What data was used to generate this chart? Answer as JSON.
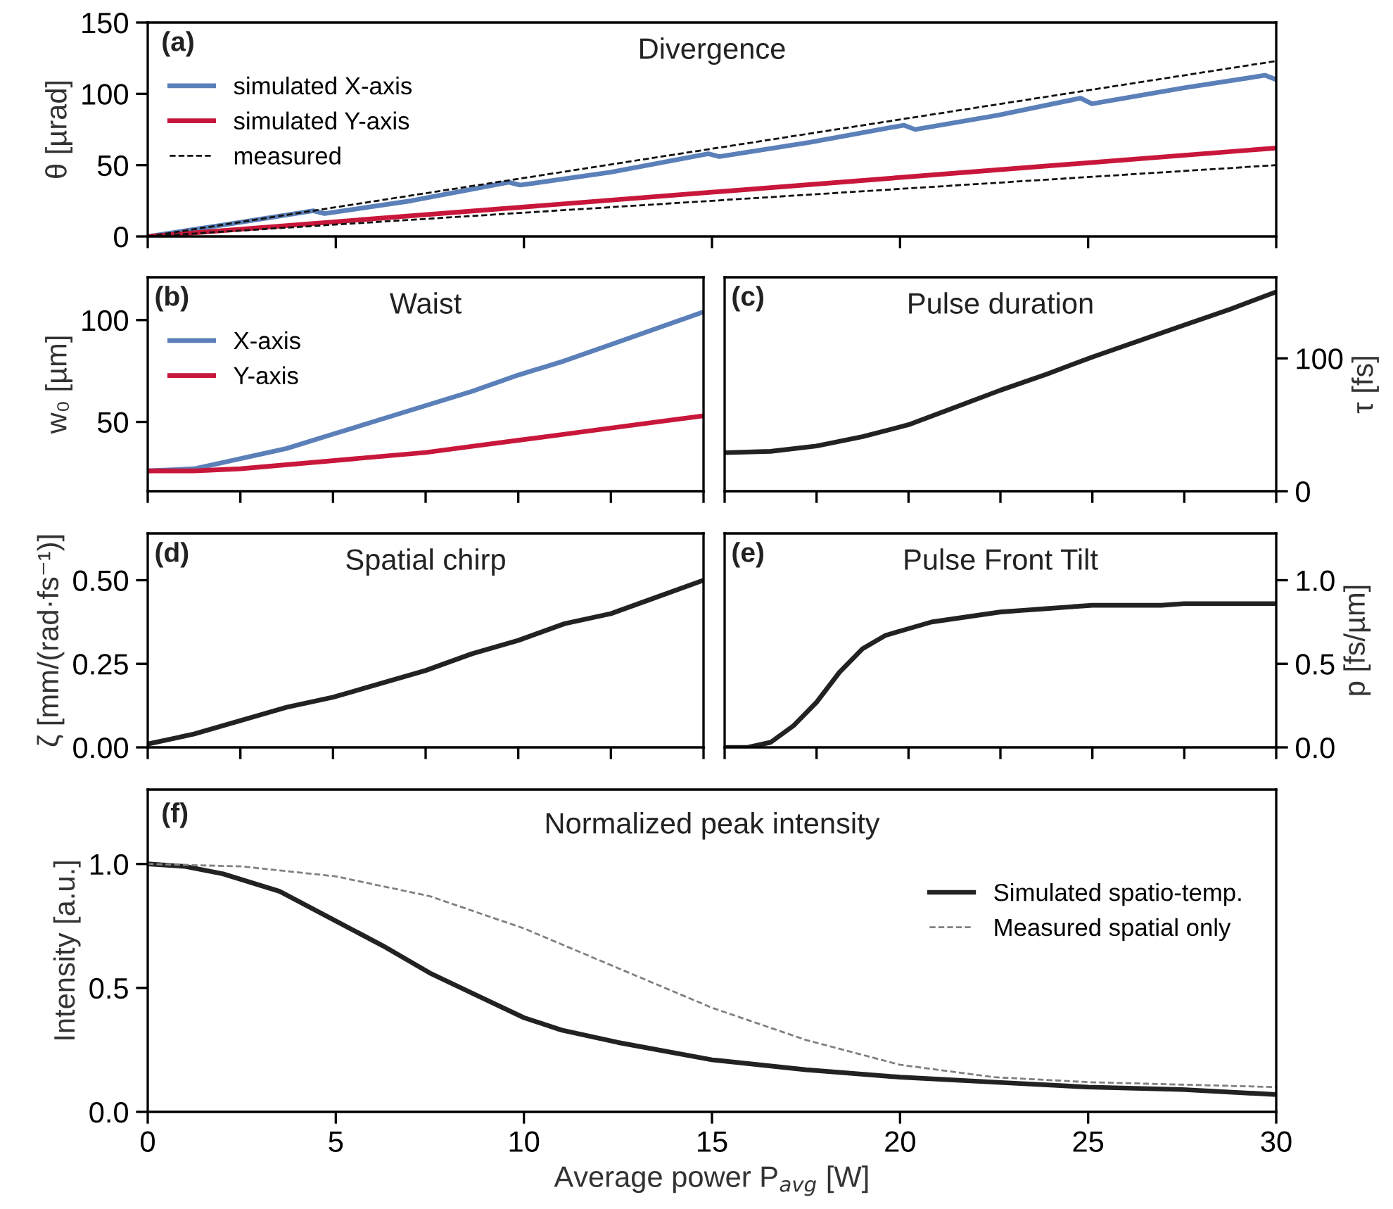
{
  "chart_data": [
    {
      "type": "line",
      "title": "Divergence",
      "ylabel": "θ [µrad]",
      "annotations": [
        "(a)"
      ],
      "legend": "top left",
      "tick_labels": "y",
      "xlim": [
        0,
        30
      ],
      "xticks": [
        {
          "value": 0,
          "label": null
        },
        {
          "value": 5,
          "label": null
        },
        {
          "value": 10,
          "label": null
        },
        {
          "value": 15,
          "label": null
        },
        {
          "value": 20,
          "label": null
        },
        {
          "value": 25,
          "label": null
        },
        {
          "value": 30,
          "label": null
        }
      ],
      "ylim": [
        0,
        150
      ],
      "yticks": [
        0,
        50,
        100,
        150
      ],
      "series": [
        {
          "name": "simulated X-axis",
          "color": "#5b80b9",
          "x": [
            0,
            2,
            4.4,
            4.7,
            7,
            9.6,
            9.9,
            12.3,
            14.9,
            15.2,
            17.6,
            20.1,
            20.4,
            22.6,
            24.8,
            25.1,
            27.5,
            29.7,
            30
          ],
          "values": [
            0,
            8,
            18,
            16,
            25,
            38,
            36,
            45,
            58,
            56,
            66,
            78,
            75,
            85,
            97,
            93,
            104,
            113,
            110
          ]
        },
        {
          "name": "simulated Y-axis",
          "color": "#c8173a",
          "x": [
            0,
            30
          ],
          "values": [
            0,
            62
          ]
        },
        {
          "name": "measured",
          "color": "#111111",
          "line_style": "dashed",
          "x": [
            0,
            30
          ],
          "values": [
            0,
            123
          ]
        },
        {
          "color": "#111111",
          "line_style": "dashed",
          "x": [
            0,
            30
          ],
          "values": [
            0,
            50
          ]
        }
      ]
    },
    {
      "type": "line",
      "title": "Waist",
      "ylabel": "w₀ [µm]",
      "annotations": [
        "(b)"
      ],
      "legend": "top left",
      "tick_labels": "y",
      "categories": [
        null,
        null,
        null,
        null,
        null,
        null,
        null,
        null,
        null,
        null,
        null,
        null,
        null
      ],
      "ylim": [
        16,
        121
      ],
      "yticks": [
        50,
        100
      ],
      "series": [
        {
          "name": "X-axis",
          "color": "#5b80b9",
          "values": [
            26,
            27,
            32,
            37,
            44,
            51,
            58,
            65,
            73,
            80,
            88,
            96,
            104
          ]
        },
        {
          "name": "Y-axis",
          "color": "#c8173a",
          "values": [
            26,
            26,
            27,
            29,
            31,
            33,
            35,
            38,
            41,
            44,
            47,
            50,
            53
          ]
        }
      ]
    },
    {
      "type": "line",
      "title": "Pulse duration",
      "ylabel": "τ [fs]",
      "annotations": [
        "(c)"
      ],
      "tick_labels": "y",
      "categories": [
        null,
        null,
        null,
        null,
        null,
        null,
        null,
        null,
        null,
        null,
        null,
        null,
        null
      ],
      "ylim": [
        0,
        161
      ],
      "yticks": [
        0,
        100
      ],
      "series": [
        {
          "color": "#222222",
          "values": [
            29,
            30,
            34,
            41,
            50,
            63,
            76,
            88,
            101,
            113,
            125,
            137,
            150
          ]
        }
      ]
    },
    {
      "type": "line",
      "title": "Spatial chirp",
      "ylabel": "ζ [mm/(rad·fs⁻¹)]",
      "annotations": [
        "(d)"
      ],
      "tick_labels": "y",
      "categories": [
        null,
        null,
        null,
        null,
        null,
        null,
        null,
        null,
        null,
        null,
        null,
        null,
        null
      ],
      "ylim": [
        0,
        0.64
      ],
      "yticks": [
        {
          "value": 0,
          "label": "0.00"
        },
        {
          "value": 0.25,
          "label": "0.25"
        },
        {
          "value": 0.5,
          "label": "0.50"
        }
      ],
      "series": [
        {
          "color": "#222222",
          "values": [
            0.01,
            0.04,
            0.08,
            0.12,
            0.15,
            0.19,
            0.23,
            0.28,
            0.32,
            0.37,
            0.4,
            0.45,
            0.5
          ]
        }
      ]
    },
    {
      "type": "line",
      "title": "Pulse Front Tilt",
      "ylabel": "p [fs/µm]",
      "annotations": [
        "(e)"
      ],
      "tick_labels": "y",
      "categories": [
        null,
        null,
        null,
        null,
        null,
        null,
        null,
        null,
        null,
        null,
        null,
        null,
        null,
        null,
        null,
        null,
        null,
        null,
        null,
        null,
        null,
        null,
        null,
        null,
        null
      ],
      "ylim": [
        0,
        1.28
      ],
      "yticks": [
        {
          "value": 0,
          "label": "0.0"
        },
        {
          "value": 0.5,
          "label": "0.5"
        },
        {
          "value": 1,
          "label": "1.0"
        }
      ],
      "series": [
        {
          "color": "#222222",
          "values": [
            0,
            0,
            0.03,
            0.13,
            0.27,
            0.45,
            0.59,
            0.67,
            0.71,
            0.75,
            0.77,
            0.79,
            0.81,
            0.82,
            0.83,
            0.84,
            0.85,
            0.85,
            0.85,
            0.85,
            0.86,
            0.86,
            0.86,
            0.86,
            0.86
          ]
        }
      ]
    },
    {
      "type": "line",
      "title": "Normalized peak intensity",
      "xlabel": "Average power P$_{avg}$ [W]",
      "ylabel": "Intensity [a.u.]",
      "annotations": [
        "(f)"
      ],
      "legend": "right",
      "xlim": [
        0,
        30
      ],
      "xticks": [
        0,
        5,
        10,
        15,
        20,
        25,
        30
      ],
      "ylim": [
        0,
        1.3
      ],
      "yticks": [
        {
          "value": 0,
          "label": "0.0"
        },
        {
          "value": 0.5,
          "label": "0.5"
        },
        {
          "value": 1,
          "label": "1.0"
        }
      ],
      "series": [
        {
          "name": "Simulated spatio-temp.",
          "color": "#222222",
          "x": [
            0,
            1,
            2,
            3.5,
            5,
            6.25,
            7.5,
            8.75,
            10,
            11,
            12.5,
            15,
            17.5,
            20,
            22.5,
            25,
            27.5,
            30
          ],
          "values": [
            1.0,
            0.99,
            0.96,
            0.89,
            0.77,
            0.67,
            0.56,
            0.47,
            0.38,
            0.33,
            0.28,
            0.21,
            0.17,
            0.14,
            0.12,
            0.1,
            0.09,
            0.07
          ]
        },
        {
          "name": "Measured spatial only",
          "color": "#808080",
          "line_style": "dashed",
          "x": [
            0,
            2.5,
            5,
            7.5,
            10,
            12.5,
            15,
            17.5,
            20,
            22.5,
            25,
            27.5,
            30
          ],
          "values": [
            1.0,
            0.99,
            0.95,
            0.87,
            0.74,
            0.58,
            0.42,
            0.29,
            0.19,
            0.14,
            0.12,
            0.11,
            0.1
          ]
        }
      ]
    }
  ]
}
